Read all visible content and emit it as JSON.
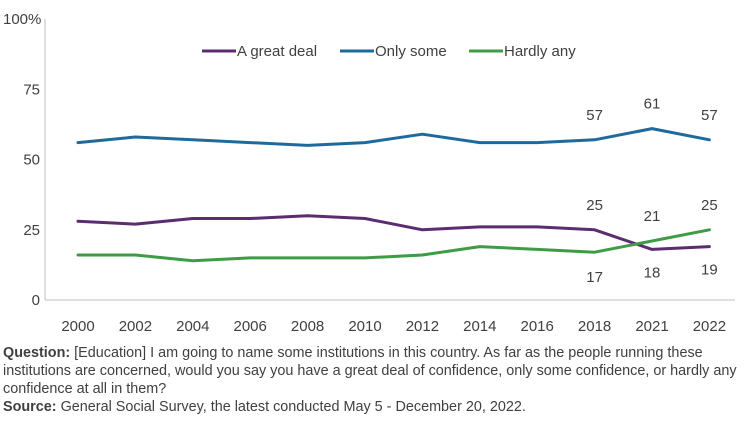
{
  "chart_data": {
    "type": "line",
    "x": [
      "2000",
      "2002",
      "2004",
      "2006",
      "2008",
      "2010",
      "2012",
      "2014",
      "2016",
      "2018",
      "2021",
      "2022"
    ],
    "ylim": [
      0,
      100
    ],
    "yticks": [
      "0",
      "25",
      "50",
      "75",
      "100%"
    ],
    "legend_position": "top-center",
    "grid": false,
    "series": [
      {
        "name": "A great deal",
        "color": "#5b2c6f",
        "values": [
          28,
          27,
          29,
          29,
          30,
          29,
          25,
          26,
          26,
          25,
          18,
          19
        ],
        "labels": [
          null,
          null,
          null,
          null,
          null,
          null,
          null,
          null,
          null,
          "25",
          "18",
          "19"
        ]
      },
      {
        "name": "Only some",
        "color": "#1f6a9c",
        "values": [
          56,
          58,
          57,
          56,
          55,
          56,
          59,
          56,
          56,
          57,
          61,
          57
        ],
        "labels": [
          null,
          null,
          null,
          null,
          null,
          null,
          null,
          null,
          null,
          "57",
          "61",
          "57"
        ]
      },
      {
        "name": "Hardly any",
        "color": "#3f9b46",
        "values": [
          16,
          16,
          14,
          15,
          15,
          15,
          16,
          19,
          18,
          17,
          21,
          25
        ],
        "labels": [
          null,
          null,
          null,
          null,
          null,
          null,
          null,
          null,
          null,
          "17",
          "21",
          "25"
        ]
      }
    ]
  },
  "footnote": {
    "question_label": "Question:",
    "question_text": " [Education] I am going to name some institutions in this country. As far as the people running these institutions are concerned, would you say you have a great deal of confidence, only some confidence, or hardly any confidence at all in them?",
    "source_label": "Source:",
    "source_text": " General Social Survey, the latest conducted May 5 - December 20, 2022."
  }
}
